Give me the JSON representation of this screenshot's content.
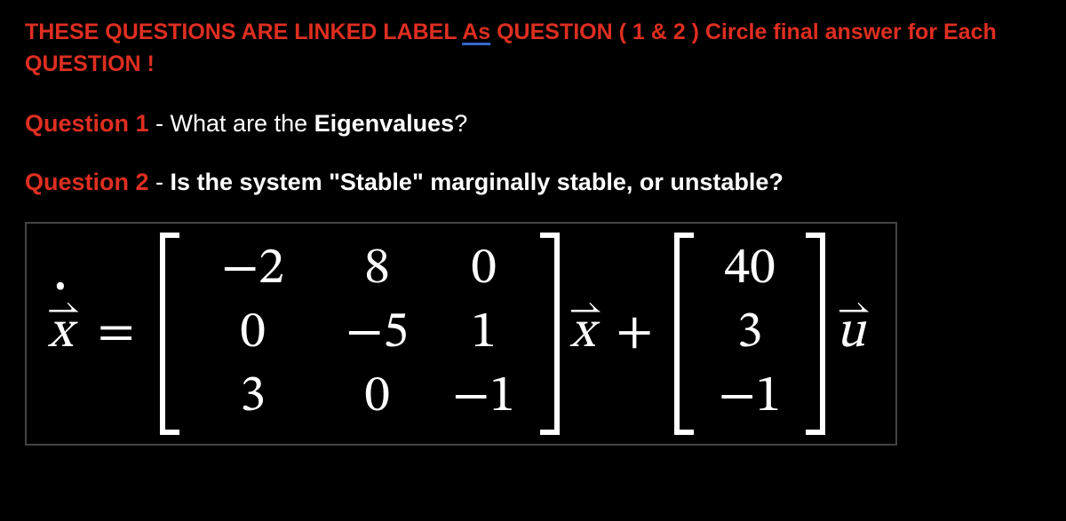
{
  "header": {
    "pre": "THESE QUESTIONS ARE LINKED LABEL ",
    "as": "As",
    "mid": "  QUESTION",
    "paren": " (  1 & 2    ) Circle final answer for Each QUESTION !"
  },
  "q1": {
    "label": "Question 1",
    "sep": " - ",
    "text_a": "What are the ",
    "bold": "Eigenvalues",
    "text_b": "?"
  },
  "q2": {
    "label": "Question 2",
    "sep": " - ",
    "bold": "Is the system \"Stable\" marginally stable, or unstable?"
  },
  "equation": {
    "xdot_arrow": "⇀",
    "xdot_dot": "•",
    "xdot": "x",
    "equals": "=",
    "A": {
      "rows": [
        [
          "−2",
          "8",
          "0"
        ],
        [
          "0",
          "−5",
          "1"
        ],
        [
          "3",
          "0",
          "−1"
        ]
      ]
    },
    "x_arrow": "⇀",
    "x": "x",
    "plus": "+",
    "B": {
      "rows": [
        "40",
        "3",
        "−1"
      ]
    },
    "u_arrow": "⇀",
    "u": "u"
  },
  "colors": {
    "background": "#000000",
    "text": "#ffffff",
    "red": "#de2e21",
    "underline": "#3366cc",
    "eq_border": "#444444"
  }
}
